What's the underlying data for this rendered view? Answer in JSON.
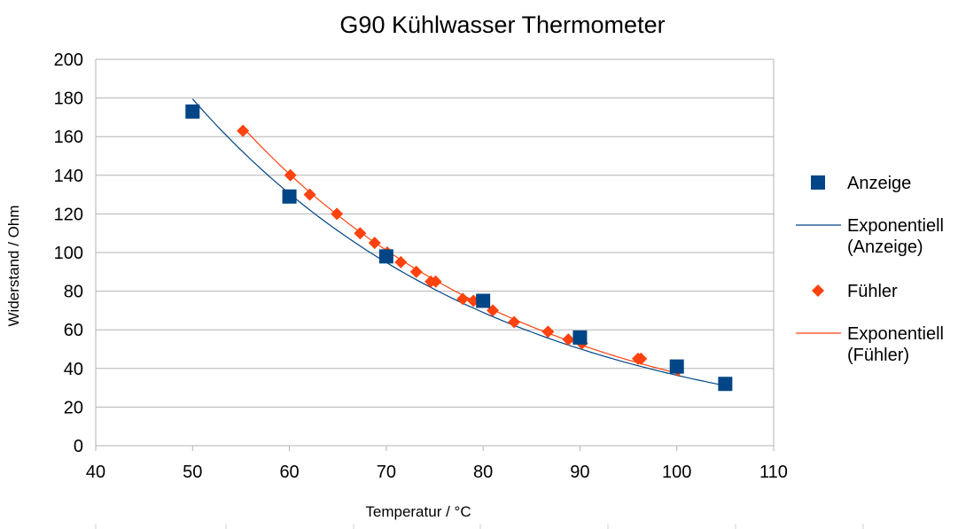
{
  "chart_data": {
    "type": "scatter",
    "title": "G90 Kühlwasser Thermometer",
    "xlabel": "Temperatur / °C",
    "ylabel": "Widerstand / Ohm",
    "xlim": [
      40,
      110
    ],
    "ylim": [
      0,
      200
    ],
    "xticks": [
      40,
      50,
      60,
      70,
      80,
      90,
      100,
      110
    ],
    "yticks": [
      0,
      20,
      40,
      60,
      80,
      100,
      120,
      140,
      160,
      180,
      200
    ],
    "grid": "horizontal",
    "legend_position": "right",
    "series": [
      {
        "name": "Anzeige",
        "marker": "square",
        "color": "#004586",
        "x": [
          50,
          60,
          70,
          80,
          90,
          100,
          105
        ],
        "y": [
          173,
          129,
          98,
          75,
          56,
          41,
          32
        ]
      },
      {
        "name": "Fühler",
        "marker": "diamond",
        "color": "#ff420e",
        "x": [
          55.2,
          60.1,
          62.1,
          64.9,
          67.3,
          68.8,
          70.1,
          71.5,
          73.1,
          74.6,
          75.1,
          77.9,
          79.0,
          81.0,
          83.2,
          86.7,
          88.8,
          90.2,
          96.0,
          96.3,
          100.1
        ],
        "y": [
          163,
          140,
          130,
          120,
          110,
          105,
          100,
          95,
          90,
          85,
          85,
          76,
          75,
          70,
          64,
          59,
          55,
          53,
          45,
          45,
          39
        ]
      }
    ],
    "trendlines": [
      {
        "name": "Exponentiell (Anzeige)",
        "type": "exponential",
        "color": "#004586",
        "x_range": [
          50,
          105
        ],
        "a": 883.7,
        "b": -0.03188
      },
      {
        "name": "Exponentiell (Fühler)",
        "type": "exponential",
        "color": "#ff420e",
        "x_range": [
          55.2,
          100.1
        ],
        "a": 1017.6,
        "b": -0.03298
      }
    ],
    "legend": [
      {
        "label": "Anzeige",
        "kind": "square",
        "color": "#004586"
      },
      {
        "label": "Exponentiell (Anzeige)",
        "lines": [
          "Exponentiell",
          "(Anzeige)"
        ],
        "kind": "line",
        "color": "#004586"
      },
      {
        "label": "Fühler",
        "kind": "diamond",
        "color": "#ff420e"
      },
      {
        "label": "Exponentiell (Fühler)",
        "lines": [
          "Exponentiell",
          "(Fühler)"
        ],
        "kind": "line",
        "color": "#ff420e"
      }
    ],
    "colors": {
      "grid": "#b3b3b3",
      "axis": "#b3b3b3"
    }
  }
}
